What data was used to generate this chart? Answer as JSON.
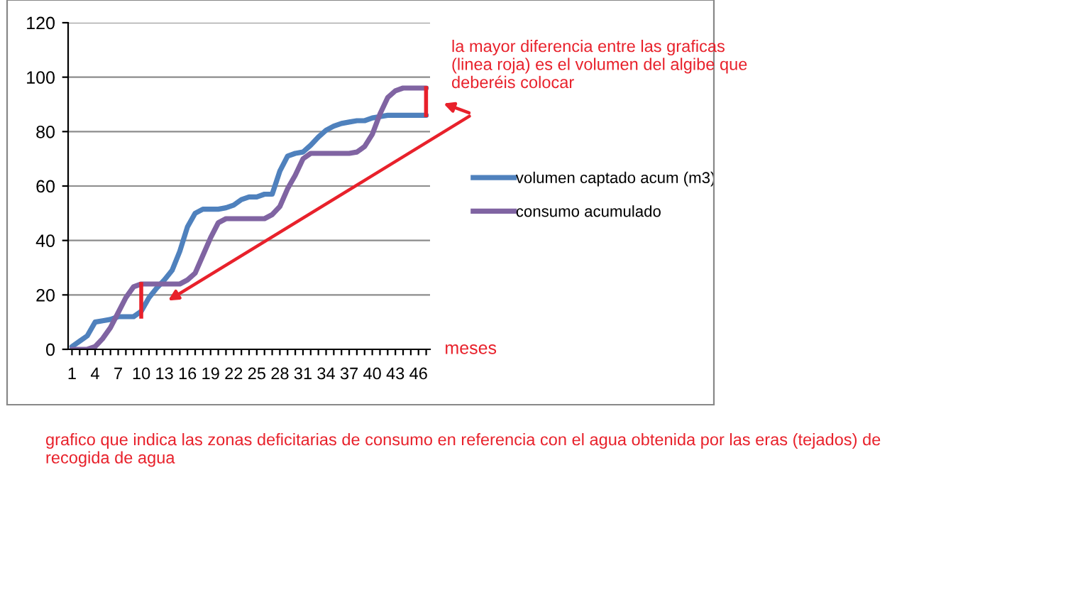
{
  "chart_data": {
    "type": "line",
    "categories": [
      "1",
      null,
      null,
      "4",
      null,
      null,
      "7",
      null,
      null,
      "10",
      null,
      null,
      "13",
      null,
      null,
      "16",
      null,
      null,
      "19",
      null,
      null,
      "22",
      null,
      null,
      "25",
      null,
      null,
      "28",
      null,
      null,
      "31",
      null,
      null,
      "34",
      null,
      null,
      "37",
      null,
      null,
      "40",
      null,
      null,
      "43",
      null,
      null,
      "46",
      null
    ],
    "series": [
      {
        "name": "volumen captado acum (m3)",
        "color": "#4f81bd",
        "values": [
          1,
          3,
          5,
          10,
          10.5,
          11,
          12,
          12,
          12,
          14,
          19,
          22.5,
          25.5,
          29,
          36,
          45,
          50,
          51.5,
          51.5,
          51.5,
          52,
          53,
          55,
          56,
          56,
          57,
          57,
          65.5,
          71,
          72,
          72.5,
          75,
          78,
          80.5,
          82,
          83,
          83.5,
          84,
          84,
          85,
          85.5,
          86,
          86,
          86,
          86,
          86,
          86
        ]
      },
      {
        "name": "consumo acumulado",
        "color": "#8064a2",
        "values": [
          0,
          0,
          0,
          1,
          4,
          8,
          13.5,
          19,
          23,
          24,
          24,
          24,
          24,
          24,
          24,
          25.5,
          28,
          34.5,
          41,
          46.5,
          48,
          48,
          48,
          48,
          48,
          48,
          49.5,
          52.5,
          59,
          64,
          70,
          72,
          72,
          72,
          72,
          72,
          72,
          72.5,
          74.5,
          79,
          86.5,
          92.5,
          95,
          96,
          96,
          96,
          96
        ]
      }
    ],
    "xlabel": "meses",
    "ylim": [
      0,
      120
    ],
    "yticks": [
      0,
      20,
      40,
      60,
      80,
      100,
      120
    ],
    "grid": "y",
    "legend": "right",
    "line_style": "solid",
    "marker": "none",
    "annotations": [
      "la mayor diferencia entre las graficas (linea roja) es el volumen del algibe que deberéis colocar",
      "grafico que indica las zonas deficitarias de consumo en referencia con el agua obtenida por las eras (tejados) de recogida de agua"
    ]
  }
}
